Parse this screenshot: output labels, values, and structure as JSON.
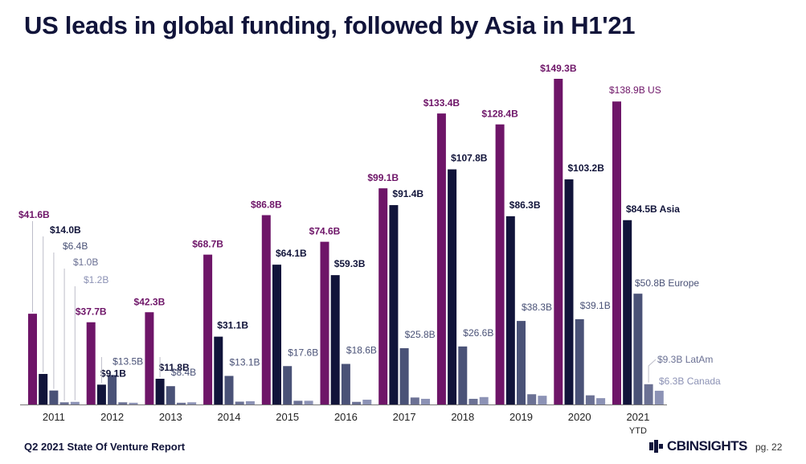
{
  "header": {
    "title": "US leads in global funding, followed by Asia in H1'21"
  },
  "footer": {
    "report": "Q2 2021 State Of Venture Report",
    "brand": "CBINSIGHTS",
    "page": "pg. 22"
  },
  "colors": {
    "US": "#6e1568",
    "Asia": "#11143a",
    "Europe": "#4a5277",
    "LatAm": "#6b7194",
    "Canada": "#8c92b5"
  },
  "chart_data": {
    "type": "bar",
    "unit": "$B",
    "categories": [
      "2011",
      "2012",
      "2013",
      "2014",
      "2015",
      "2016",
      "2017",
      "2018",
      "2019",
      "2020",
      "2021"
    ],
    "category_sublabels": {
      "2021": "YTD"
    },
    "series": [
      {
        "name": "US",
        "values": [
          41.6,
          37.7,
          42.3,
          68.7,
          86.8,
          74.6,
          99.1,
          133.4,
          128.4,
          149.3,
          138.9
        ]
      },
      {
        "name": "Asia",
        "values": [
          14.0,
          9.1,
          11.8,
          31.1,
          64.1,
          59.3,
          91.4,
          107.8,
          86.3,
          103.2,
          84.5
        ]
      },
      {
        "name": "Europe",
        "values": [
          6.4,
          13.5,
          8.4,
          13.1,
          17.6,
          18.6,
          25.8,
          26.6,
          38.3,
          39.1,
          50.8
        ]
      },
      {
        "name": "LatAm",
        "values": [
          1.0,
          1.0,
          0.8,
          1.3,
          1.7,
          1.2,
          3.2,
          2.6,
          4.7,
          4.2,
          9.3
        ]
      },
      {
        "name": "Canada",
        "values": [
          1.2,
          0.8,
          1.0,
          1.5,
          1.7,
          2.2,
          2.6,
          3.4,
          4.0,
          2.9,
          6.3
        ]
      }
    ],
    "labels": [
      [
        "$41.6B",
        "$14.0B",
        "$6.4B",
        "$1.0B",
        "$1.2B"
      ],
      [
        "$37.7B",
        "$9.1B",
        "$13.5B",
        "",
        ""
      ],
      [
        "$42.3B",
        "$11.8B",
        "$8.4B",
        "",
        ""
      ],
      [
        "$68.7B",
        "$31.1B",
        "$13.1B",
        "",
        ""
      ],
      [
        "$86.8B",
        "$64.1B",
        "$17.6B",
        "",
        ""
      ],
      [
        "$74.6B",
        "$59.3B",
        "$18.6B",
        "",
        ""
      ],
      [
        "$99.1B",
        "$91.4B",
        "$25.8B",
        "",
        ""
      ],
      [
        "$133.4B",
        "$107.8B",
        "$26.6B",
        "",
        ""
      ],
      [
        "$128.4B",
        "$86.3B",
        "$38.3B",
        "",
        ""
      ],
      [
        "$149.3B",
        "$103.2B",
        "$39.1B",
        "",
        ""
      ],
      [
        "$138.9B US",
        "$84.5B Asia",
        "$50.8B Europe",
        "$9.3B LatAm",
        "$6.3B Canada"
      ]
    ],
    "legend": "inline-right",
    "grid": false,
    "ylim": [
      0,
      150
    ]
  }
}
